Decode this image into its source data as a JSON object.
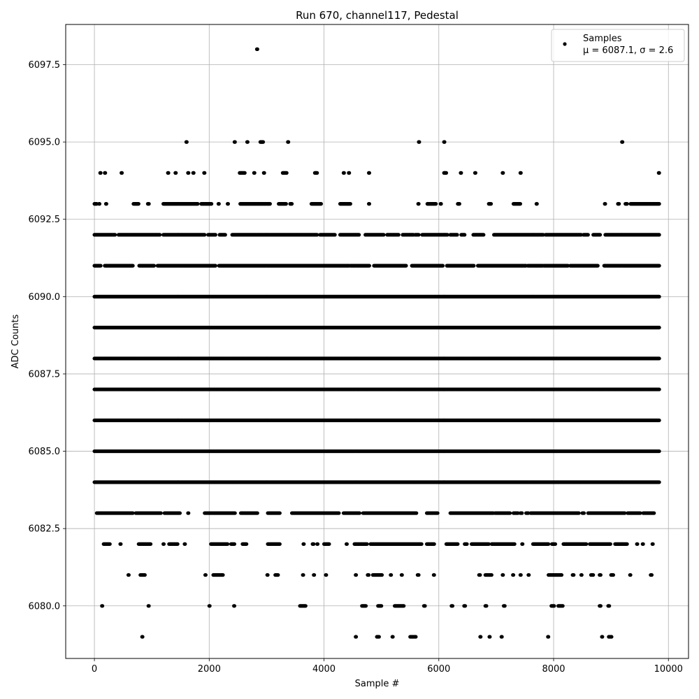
{
  "chart_data": {
    "type": "scatter",
    "title": "Run 670, channel117, Pedestal",
    "xlabel": "Sample #",
    "ylabel": "ADC Counts",
    "xlim": [
      -500,
      10350
    ],
    "ylim": [
      6078.3,
      6098.8
    ],
    "xticks": [
      0,
      2000,
      4000,
      6000,
      8000,
      10000
    ],
    "xtick_labels": [
      "0",
      "2000",
      "4000",
      "6000",
      "8000",
      "10000"
    ],
    "yticks": [
      6080.0,
      6082.5,
      6085.0,
      6087.5,
      6090.0,
      6092.5,
      6095.0,
      6097.5
    ],
    "ytick_labels": [
      "6080.0",
      "6082.5",
      "6085.0",
      "6087.5",
      "6090.0",
      "6092.5",
      "6095.0",
      "6097.5"
    ],
    "grid": true,
    "legend_position": "top-right",
    "series": [
      {
        "name": "Samples",
        "label_line2": "μ = 6087.1, σ = 2.6",
        "color": "#000000",
        "marker": "circle",
        "sample_count": 9840,
        "sample_spacing": 1,
        "x_start": 0,
        "x_end": 9840,
        "levels": [
          {
            "y": 6079,
            "x_ranges": [
              [
                830,
                840
              ],
              [
                4550,
                4560
              ],
              [
                4920,
                4960
              ],
              [
                5190,
                5200
              ],
              [
                5500,
                5600
              ],
              [
                6720,
                6730
              ],
              [
                6880,
                6890
              ],
              [
                7090,
                7100
              ],
              [
                7900,
                7910
              ],
              [
                8840,
                8850
              ],
              [
                8960,
                9010
              ]
            ]
          },
          {
            "y": 6080,
            "x_ranges": [
              [
                130,
                140
              ],
              [
                940,
                950
              ],
              [
                2000,
                2010
              ],
              [
                2430,
                2440
              ],
              [
                3580,
                3680
              ],
              [
                4660,
                4730
              ],
              [
                4940,
                5000
              ],
              [
                5230,
                5390
              ],
              [
                5740,
                5760
              ],
              [
                6220,
                6240
              ],
              [
                6440,
                6460
              ],
              [
                6810,
                6830
              ],
              [
                7130,
                7150
              ],
              [
                7960,
                8010
              ],
              [
                8080,
                8160
              ],
              [
                8800,
                8820
              ],
              [
                8950,
                8970
              ]
            ]
          },
          {
            "y": 6081,
            "x_ranges": [
              [
                590,
                600
              ],
              [
                800,
                880
              ],
              [
                1930,
                1940
              ],
              [
                2070,
                2240
              ],
              [
                3010,
                3020
              ],
              [
                3150,
                3200
              ],
              [
                3630,
                3640
              ],
              [
                3820,
                3830
              ],
              [
                4030,
                4040
              ],
              [
                4550,
                4560
              ],
              [
                4760,
                4780
              ],
              [
                4850,
                5010
              ],
              [
                5160,
                5170
              ],
              [
                5350,
                5360
              ],
              [
                5630,
                5650
              ],
              [
                5910,
                5920
              ],
              [
                6700,
                6720
              ],
              [
                6810,
                6920
              ],
              [
                7110,
                7120
              ],
              [
                7290,
                7300
              ],
              [
                7420,
                7430
              ],
              [
                7560,
                7570
              ],
              [
                7910,
                8140
              ],
              [
                8330,
                8350
              ],
              [
                8480,
                8490
              ],
              [
                8650,
                8690
              ],
              [
                8800,
                8820
              ],
              [
                9000,
                9040
              ],
              [
                9330,
                9340
              ],
              [
                9690,
                9710
              ]
            ]
          },
          {
            "y": 6082,
            "x_ranges": [
              [
                160,
                270
              ],
              [
                450,
                460
              ],
              [
                770,
                980
              ],
              [
                1200,
                1210
              ],
              [
                1300,
                1450
              ],
              [
                1570,
                1580
              ],
              [
                2030,
                2320
              ],
              [
                2380,
                2440
              ],
              [
                2580,
                2650
              ],
              [
                3020,
                3230
              ],
              [
                3640,
                3650
              ],
              [
                3800,
                3820
              ],
              [
                3880,
                3890
              ],
              [
                4000,
                4090
              ],
              [
                4390,
                4400
              ],
              [
                4530,
                4750
              ],
              [
                4810,
                5700
              ],
              [
                5790,
                5920
              ],
              [
                6130,
                6330
              ],
              [
                6450,
                6490
              ],
              [
                6570,
                6870
              ],
              [
                6920,
                7320
              ],
              [
                7450,
                7460
              ],
              [
                7640,
                7910
              ],
              [
                7970,
                8030
              ],
              [
                8170,
                8570
              ],
              [
                8630,
                8990
              ],
              [
                9070,
                9280
              ],
              [
                9450,
                9460
              ],
              [
                9550,
                9560
              ],
              [
                9720,
                9730
              ]
            ]
          },
          {
            "y": 6083,
            "x_ranges": [
              [
                40,
                670
              ],
              [
                720,
                1160
              ],
              [
                1220,
                1490
              ],
              [
                1630,
                1640
              ],
              [
                1920,
                2450
              ],
              [
                2550,
                2840
              ],
              [
                3020,
                3230
              ],
              [
                3440,
                4260
              ],
              [
                4340,
                4620
              ],
              [
                4680,
                5610
              ],
              [
                5790,
                5980
              ],
              [
                6200,
                6950
              ],
              [
                6980,
                7240
              ],
              [
                7300,
                7380
              ],
              [
                7420,
                7450
              ],
              [
                7520,
                7560
              ],
              [
                7600,
                8440
              ],
              [
                8500,
                8530
              ],
              [
                8600,
                9240
              ],
              [
                9290,
                9510
              ],
              [
                9560,
                9750
              ]
            ]
          },
          {
            "y": 6084,
            "x_ranges": [
              [
                0,
                9840
              ]
            ]
          },
          {
            "y": 6085,
            "x_ranges": [
              [
                0,
                9840
              ]
            ]
          },
          {
            "y": 6086,
            "x_ranges": [
              [
                0,
                9840
              ]
            ]
          },
          {
            "y": 6087,
            "x_ranges": [
              [
                0,
                9840
              ]
            ]
          },
          {
            "y": 6088,
            "x_ranges": [
              [
                0,
                9840
              ]
            ]
          },
          {
            "y": 6089,
            "x_ranges": [
              [
                0,
                9840
              ]
            ]
          },
          {
            "y": 6090,
            "x_ranges": [
              [
                0,
                9840
              ]
            ]
          },
          {
            "y": 6091,
            "x_ranges": [
              [
                0,
                110
              ],
              [
                180,
                670
              ],
              [
                780,
                1040
              ],
              [
                1100,
                2110
              ],
              [
                2170,
                4440
              ],
              [
                4460,
                4790
              ],
              [
                4870,
                5430
              ],
              [
                5530,
                6070
              ],
              [
                6140,
                6610
              ],
              [
                6680,
                7520
              ],
              [
                7550,
                7810
              ],
              [
                7830,
                8250
              ],
              [
                8290,
                8770
              ],
              [
                8880,
                9840
              ]
            ]
          },
          {
            "y": 6092,
            "x_ranges": [
              [
                0,
                360
              ],
              [
                420,
                1140
              ],
              [
                1200,
                1920
              ],
              [
                1980,
                2110
              ],
              [
                2180,
                2280
              ],
              [
                2400,
                3880
              ],
              [
                3930,
                4190
              ],
              [
                4280,
                4610
              ],
              [
                4720,
                5040
              ],
              [
                5100,
                5300
              ],
              [
                5370,
                5560
              ],
              [
                5590,
                5650
              ],
              [
                5710,
                6150
              ],
              [
                6200,
                6320
              ],
              [
                6390,
                6450
              ],
              [
                6600,
                6780
              ],
              [
                6960,
                7820
              ],
              [
                7860,
                8480
              ],
              [
                8520,
                8600
              ],
              [
                8690,
                8810
              ],
              [
                8900,
                9840
              ]
            ]
          },
          {
            "y": 6093,
            "x_ranges": [
              [
                0,
                40
              ],
              [
                80,
                90
              ],
              [
                200,
                210
              ],
              [
                680,
                770
              ],
              [
                930,
                950
              ],
              [
                1200,
                1800
              ],
              [
                1860,
                2040
              ],
              [
                2160,
                2170
              ],
              [
                2320,
                2330
              ],
              [
                2540,
                3060
              ],
              [
                3210,
                3340
              ],
              [
                3410,
                3440
              ],
              [
                3780,
                3950
              ],
              [
                4280,
                4460
              ],
              [
                4780,
                4790
              ],
              [
                5640,
                5650
              ],
              [
                5800,
                5950
              ],
              [
                6030,
                6040
              ],
              [
                6330,
                6360
              ],
              [
                6870,
                6910
              ],
              [
                7300,
                7420
              ],
              [
                7700,
                7710
              ],
              [
                8890,
                8900
              ],
              [
                9120,
                9140
              ],
              [
                9250,
                9280
              ],
              [
                9340,
                9840
              ]
            ]
          },
          {
            "y": 6094,
            "x_ranges": [
              [
                100,
                110
              ],
              [
                180,
                190
              ],
              [
                470,
                480
              ],
              [
                1280,
                1290
              ],
              [
                1410,
                1420
              ],
              [
                1630,
                1640
              ],
              [
                1720,
                1730
              ],
              [
                1910,
                1920
              ],
              [
                2530,
                2620
              ],
              [
                2780,
                2790
              ],
              [
                2950,
                2960
              ],
              [
                3280,
                3350
              ],
              [
                3840,
                3880
              ],
              [
                4340,
                4350
              ],
              [
                4430,
                4440
              ],
              [
                4780,
                4790
              ],
              [
                6090,
                6130
              ],
              [
                6380,
                6390
              ],
              [
                6630,
                6640
              ],
              [
                7110,
                7120
              ],
              [
                7420,
                7430
              ],
              [
                9830,
                9840
              ]
            ]
          },
          {
            "y": 6095,
            "x_ranges": [
              [
                1600,
                1610
              ],
              [
                2440,
                2450
              ],
              [
                2660,
                2670
              ],
              [
                2890,
                2940
              ],
              [
                3370,
                3380
              ],
              [
                5650,
                5660
              ],
              [
                6090,
                6100
              ],
              [
                9190,
                9200
              ]
            ]
          },
          {
            "y": 6098,
            "x_ranges": [
              [
                2830,
                2840
              ]
            ]
          }
        ]
      }
    ]
  }
}
